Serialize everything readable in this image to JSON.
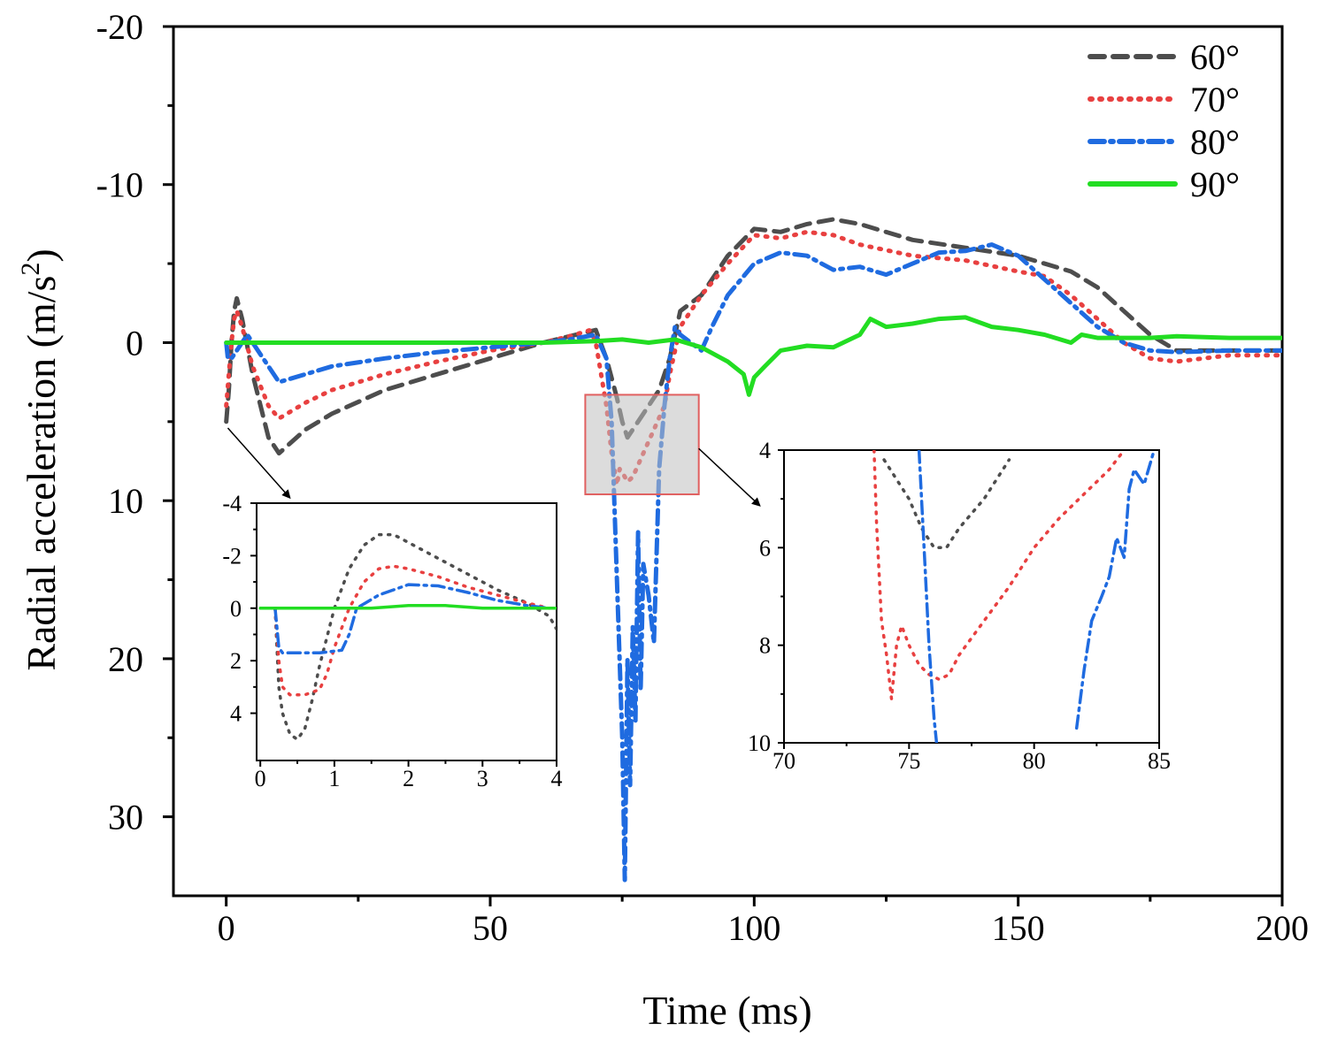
{
  "chart_data": [
    {
      "id": "main",
      "type": "line",
      "title": "",
      "xlabel": "Time (ms)",
      "ylabel": "Radial acceleration (m/s",
      "ylabel_sup": "2",
      "ylabel_close": ")",
      "xlim": [
        -10,
        200
      ],
      "ylim": [
        35,
        -20
      ],
      "y_inverted": true,
      "xticks": [
        0,
        50,
        100,
        150,
        200
      ],
      "xtick_labels": [
        "0",
        "50",
        "100",
        "150",
        "200"
      ],
      "yticks": [
        -20,
        -10,
        0,
        10,
        20,
        30
      ],
      "ytick_labels": [
        "-20",
        "-10",
        "0",
        "10",
        "20",
        "30"
      ],
      "grid": false,
      "legend_position": "top-right",
      "series": [
        {
          "name": "60°",
          "color": "#4d4d4d",
          "style": "dash",
          "x": [
            0,
            0.5,
            1,
            1.5,
            2,
            3,
            5,
            8,
            10,
            15,
            20,
            30,
            40,
            50,
            60,
            65,
            70,
            72,
            74,
            75,
            76,
            78,
            80,
            82,
            84,
            86,
            88,
            90,
            95,
            100,
            105,
            110,
            115,
            120,
            130,
            140,
            150,
            160,
            165,
            170,
            175,
            180,
            190,
            200
          ],
          "y": [
            5,
            3,
            0,
            -2,
            -2.8,
            -1.5,
            2,
            6,
            7,
            5.5,
            4.5,
            3,
            2,
            1,
            0,
            -0.4,
            -0.8,
            1,
            3.5,
            5,
            6,
            5,
            4,
            3,
            1,
            -2,
            -2.5,
            -3,
            -5.5,
            -7.2,
            -7,
            -7.5,
            -7.8,
            -7.5,
            -6.5,
            -6,
            -5.5,
            -4.5,
            -3.5,
            -2,
            -0.5,
            0.5,
            0.5,
            0.5
          ]
        },
        {
          "name": "70°",
          "color": "#e84040",
          "style": "dot",
          "x": [
            0,
            0.5,
            1,
            1.5,
            2,
            3,
            5,
            8,
            10,
            15,
            20,
            30,
            40,
            50,
            60,
            65,
            69,
            70,
            72,
            73,
            74,
            74.5,
            75,
            76,
            77,
            79,
            81,
            83,
            84,
            86,
            88,
            90,
            95,
            100,
            105,
            110,
            115,
            120,
            130,
            140,
            150,
            155,
            160,
            165,
            170,
            175,
            180,
            190,
            200
          ],
          "y": [
            4,
            2,
            0,
            -1.5,
            -2,
            -1,
            1.5,
            4,
            4.8,
            3.8,
            3,
            2,
            1.2,
            0.5,
            0,
            -0.4,
            -0.8,
            0,
            4,
            7,
            9,
            8,
            8.2,
            8.8,
            8.5,
            7,
            5.5,
            4,
            2,
            -1,
            -2,
            -3,
            -5,
            -6.8,
            -6.6,
            -7,
            -6.8,
            -6.2,
            -5.5,
            -5.2,
            -4.5,
            -4.2,
            -3,
            -1.5,
            0,
            1,
            1.2,
            0.8,
            0.8
          ]
        },
        {
          "name": "80°",
          "color": "#1f6be0",
          "style": "dashdot",
          "x": [
            0,
            0.3,
            1,
            2,
            4,
            7,
            10,
            15,
            20,
            30,
            40,
            50,
            60,
            65,
            70,
            72,
            73,
            74,
            75,
            75.5,
            76,
            76.5,
            77,
            77.5,
            78,
            78.5,
            79,
            80,
            81,
            82,
            83,
            84,
            85,
            86,
            88,
            90,
            92,
            95,
            100,
            105,
            110,
            115,
            120,
            125,
            130,
            135,
            140,
            145,
            150,
            155,
            160,
            165,
            170,
            175,
            180,
            190,
            200
          ],
          "y": [
            0,
            1,
            1,
            0.5,
            -0.5,
            1,
            2.5,
            2,
            1.5,
            1,
            0.6,
            0.3,
            0,
            -0.2,
            -0.5,
            1,
            5,
            15,
            25,
            34,
            20,
            28,
            18,
            24,
            12,
            22,
            14,
            16,
            19,
            8,
            4,
            1,
            -1,
            -0.5,
            0,
            0.5,
            -1,
            -3,
            -5,
            -5.7,
            -5.5,
            -4.6,
            -4.8,
            -4.3,
            -5,
            -5.7,
            -5.8,
            -6.2,
            -5.5,
            -4,
            -2.5,
            -1,
            0,
            0.5,
            0.6,
            0.5,
            0.5
          ]
        },
        {
          "name": "90°",
          "color": "#22dd22",
          "style": "solid",
          "x": [
            0,
            10,
            20,
            30,
            40,
            50,
            60,
            70,
            75,
            80,
            85,
            90,
            95,
            98,
            99,
            100,
            102,
            105,
            110,
            115,
            120,
            122,
            125,
            130,
            135,
            140,
            145,
            150,
            155,
            160,
            162,
            165,
            170,
            175,
            180,
            190,
            200
          ],
          "y": [
            0,
            0,
            0,
            0,
            0,
            0,
            0,
            -0.1,
            -0.2,
            0,
            -0.2,
            0.3,
            1.2,
            2,
            3.3,
            2.2,
            1.5,
            0.5,
            0.2,
            0.3,
            -0.5,
            -1.5,
            -1,
            -1.2,
            -1.5,
            -1.6,
            -1,
            -0.8,
            -0.5,
            0,
            -0.5,
            -0.3,
            -0.3,
            -0.3,
            -0.4,
            -0.3,
            -0.3
          ]
        }
      ]
    },
    {
      "id": "inset-left",
      "type": "line",
      "title": "",
      "xlabel": "",
      "ylabel": "",
      "xlim": [
        -0.05,
        4
      ],
      "ylim": [
        5.8,
        -4
      ],
      "y_inverted": true,
      "xticks": [
        0,
        1,
        2,
        3,
        4
      ],
      "xtick_labels": [
        "0",
        "1",
        "2",
        "3",
        "4"
      ],
      "yticks": [
        -4,
        -2,
        0,
        2,
        4
      ],
      "ytick_labels": [
        "-4",
        "-2",
        "0",
        "2",
        "4"
      ],
      "series": [
        {
          "name": "60°",
          "color": "#4d4d4d",
          "style": "dot",
          "x": [
            0.2,
            0.25,
            0.3,
            0.4,
            0.5,
            0.6,
            0.7,
            0.8,
            1.0,
            1.2,
            1.4,
            1.6,
            1.8,
            2.0,
            2.4,
            2.8,
            3.2,
            3.6,
            3.9,
            4.0
          ],
          "y": [
            0,
            3,
            4,
            4.8,
            5,
            4.6,
            3.5,
            2.2,
            0,
            -1.5,
            -2.4,
            -2.8,
            -2.8,
            -2.5,
            -1.9,
            -1.3,
            -0.7,
            -0.2,
            0.3,
            0.8
          ]
        },
        {
          "name": "70°",
          "color": "#e84040",
          "style": "dot",
          "x": [
            0.2,
            0.25,
            0.3,
            0.4,
            0.6,
            0.8,
            0.9,
            1.0,
            1.2,
            1.4,
            1.6,
            1.8,
            2.0,
            2.4,
            2.8,
            3.2,
            3.6,
            3.9
          ],
          "y": [
            0,
            2,
            3,
            3.3,
            3.3,
            3.1,
            2.5,
            1.5,
            0,
            -1,
            -1.5,
            -1.6,
            -1.5,
            -1.2,
            -0.8,
            -0.5,
            -0.2,
            0
          ]
        },
        {
          "name": "80°",
          "color": "#1f6be0",
          "style": "dashdot",
          "x": [
            0.2,
            0.25,
            0.3,
            0.5,
            0.8,
            1.1,
            1.2,
            1.3,
            1.6,
            2.0,
            2.4,
            2.8,
            3.2,
            3.6,
            3.9
          ],
          "y": [
            0,
            1.5,
            1.7,
            1.7,
            1.7,
            1.6,
            1,
            0,
            -0.5,
            -0.9,
            -0.85,
            -0.6,
            -0.3,
            -0.1,
            0
          ]
        },
        {
          "name": "90°",
          "color": "#22dd22",
          "style": "solid",
          "x": [
            0,
            0.5,
            1,
            1.5,
            2,
            2.5,
            3,
            3.5,
            4
          ],
          "y": [
            0,
            0,
            0,
            0,
            -0.1,
            -0.1,
            0,
            0,
            0
          ]
        }
      ]
    },
    {
      "id": "inset-right",
      "type": "line",
      "title": "",
      "xlabel": "",
      "ylabel": "",
      "xlim": [
        70,
        85
      ],
      "ylim": [
        10,
        4
      ],
      "y_inverted": true,
      "xticks": [
        70,
        75,
        80,
        85
      ],
      "xtick_labels": [
        "70",
        "75",
        "80",
        "85"
      ],
      "yticks": [
        4,
        6,
        8,
        10
      ],
      "ytick_labels": [
        "4",
        "6",
        "8",
        "10"
      ],
      "series": [
        {
          "name": "60°",
          "color": "#4d4d4d",
          "style": "dot",
          "x": [
            74,
            74.5,
            75,
            75.5,
            76,
            76.5,
            77,
            78,
            79
          ],
          "y": [
            4.2,
            4.6,
            5,
            5.6,
            6,
            6,
            5.6,
            5,
            4.2
          ]
        },
        {
          "name": "70°",
          "color": "#e84040",
          "style": "dot",
          "x": [
            73.6,
            73.7,
            73.9,
            74.1,
            74.3,
            74.5,
            74.7,
            75,
            75.4,
            75.8,
            76.2,
            76.6,
            77,
            78,
            79,
            80,
            81,
            82,
            83,
            83.6
          ],
          "y": [
            4,
            5.5,
            7.5,
            8.2,
            9.1,
            8,
            7.6,
            8,
            8.4,
            8.6,
            8.7,
            8.6,
            8.2,
            7.5,
            6.8,
            6,
            5.4,
            4.9,
            4.4,
            4
          ]
        },
        {
          "name": "80°",
          "color": "#1f6be0",
          "style": "dashdot",
          "x": [
            75.4,
            75.6,
            75.8,
            76,
            76.1
          ],
          "y": [
            4,
            6,
            8,
            9.5,
            10
          ]
        },
        {
          "name": "80°-b",
          "color": "#1f6be0",
          "style": "dashdot",
          "x": [
            81.7,
            82,
            82.3,
            82.7,
            83,
            83.3,
            83.6,
            83.8,
            84,
            84.4,
            84.8
          ],
          "y": [
            9.7,
            8.5,
            7.5,
            7,
            6.6,
            5.8,
            6.2,
            4.8,
            4.4,
            4.7,
            4
          ]
        }
      ]
    }
  ]
}
